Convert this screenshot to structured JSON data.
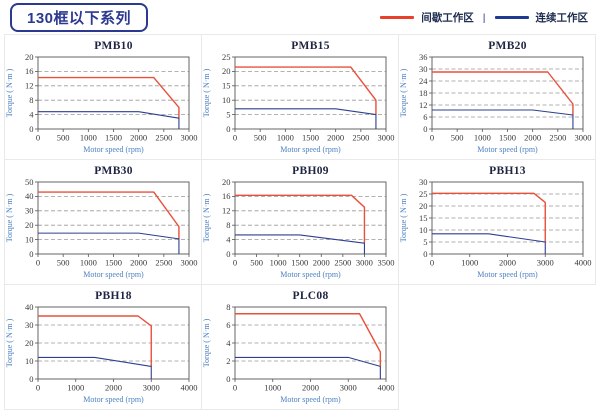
{
  "header": {
    "title": "130框以下系列",
    "legend": {
      "intermittent": "间歇工作区",
      "separator": "|",
      "continuous": "连续工作区"
    }
  },
  "theme": {
    "intermittent_color": "#e8503a",
    "continuous_color": "#2e3f8f",
    "grid_color": "#999999",
    "frame_color": "#555555",
    "tick_text_color": "#3a3a3a",
    "chart_title_color": "#1f2440",
    "axis_label_color": "#4a7fc1",
    "accent_navy": "#2b3990",
    "legend_red": "#e8402a",
    "legend_blue": "#1f3a93",
    "cell_border": "#e9e9e9"
  },
  "chart_data": [
    {
      "type": "line",
      "title": "PMB10",
      "xlabel": "Motor speed (rpm)",
      "ylabel": "Torque ( N·m )",
      "x_ticks": [
        0,
        500,
        1000,
        1500,
        2000,
        2500,
        3000
      ],
      "xlim": [
        0,
        3000
      ],
      "y_ticks": [
        0,
        4,
        8,
        12,
        16,
        20
      ],
      "ylim": [
        0,
        20
      ],
      "grid": "horizontal-dashed",
      "series": [
        {
          "name": "间歇工作区",
          "color": "intermittent",
          "points": [
            [
              0,
              14.3
            ],
            [
              2300,
              14.3
            ],
            [
              2800,
              6
            ],
            [
              2800,
              3
            ]
          ]
        },
        {
          "name": "连续工作区",
          "color": "continuous",
          "points": [
            [
              0,
              4.8
            ],
            [
              2000,
              4.8
            ],
            [
              2800,
              3
            ],
            [
              2800,
              0
            ]
          ]
        }
      ]
    },
    {
      "type": "line",
      "title": "PMB15",
      "xlabel": "Motor speed (rpm)",
      "ylabel": "Torque ( N·m )",
      "x_ticks": [
        0,
        500,
        1000,
        1500,
        2000,
        2500,
        3000
      ],
      "xlim": [
        0,
        3000
      ],
      "y_ticks": [
        0,
        5,
        10,
        15,
        20,
        25
      ],
      "ylim": [
        0,
        25
      ],
      "grid": "horizontal-dashed",
      "series": [
        {
          "name": "间歇工作区",
          "color": "intermittent",
          "points": [
            [
              0,
              21.5
            ],
            [
              2300,
              21.5
            ],
            [
              2800,
              10
            ],
            [
              2800,
              5
            ]
          ]
        },
        {
          "name": "连续工作区",
          "color": "continuous",
          "points": [
            [
              0,
              7
            ],
            [
              2000,
              7
            ],
            [
              2800,
              5
            ],
            [
              2800,
              0
            ]
          ]
        }
      ]
    },
    {
      "type": "line",
      "title": "PMB20",
      "xlabel": "Motor speed (rpm)",
      "ylabel": "Torque ( N·m )",
      "x_ticks": [
        0,
        500,
        1000,
        1500,
        2000,
        2500,
        3000
      ],
      "xlim": [
        0,
        3000
      ],
      "y_ticks": [
        0,
        6,
        12,
        18,
        24,
        30,
        36
      ],
      "ylim": [
        0,
        36
      ],
      "grid": "horizontal-dashed",
      "series": [
        {
          "name": "间歇工作区",
          "color": "intermittent",
          "points": [
            [
              0,
              28.5
            ],
            [
              2300,
              28.5
            ],
            [
              2800,
              12.5
            ],
            [
              2800,
              7
            ]
          ]
        },
        {
          "name": "连续工作区",
          "color": "continuous",
          "points": [
            [
              0,
              9.5
            ],
            [
              2000,
              9.5
            ],
            [
              2800,
              7
            ],
            [
              2800,
              0
            ]
          ]
        }
      ]
    },
    {
      "type": "line",
      "title": "PMB30",
      "xlabel": "Motor speed (rpm)",
      "ylabel": "Torque ( N·m )",
      "x_ticks": [
        0,
        500,
        1000,
        1500,
        2000,
        2500,
        3000
      ],
      "xlim": [
        0,
        3000
      ],
      "y_ticks": [
        0,
        10,
        20,
        30,
        40,
        50
      ],
      "ylim": [
        0,
        50
      ],
      "grid": "horizontal-dashed",
      "series": [
        {
          "name": "间歇工作区",
          "color": "intermittent",
          "points": [
            [
              0,
              43
            ],
            [
              2300,
              43
            ],
            [
              2800,
              19
            ],
            [
              2800,
              10.5
            ]
          ]
        },
        {
          "name": "连续工作区",
          "color": "continuous",
          "points": [
            [
              0,
              14.5
            ],
            [
              2000,
              14.5
            ],
            [
              2800,
              10.5
            ],
            [
              2800,
              0
            ]
          ]
        }
      ]
    },
    {
      "type": "line",
      "title": "PBH09",
      "xlabel": "Motor speed (rpm)",
      "ylabel": "Torque ( N·m )",
      "x_ticks": [
        0,
        500,
        1000,
        1500,
        2000,
        2500,
        3000,
        3500
      ],
      "xlim": [
        0,
        3500
      ],
      "y_ticks": [
        0,
        4,
        8,
        12,
        16,
        20
      ],
      "ylim": [
        0,
        20
      ],
      "grid": "horizontal-dashed",
      "series": [
        {
          "name": "间歇工作区",
          "color": "intermittent",
          "points": [
            [
              0,
              16.3
            ],
            [
              2700,
              16.3
            ],
            [
              3000,
              13
            ],
            [
              3000,
              3
            ]
          ]
        },
        {
          "name": "连续工作区",
          "color": "continuous",
          "points": [
            [
              0,
              5.3
            ],
            [
              1500,
              5.3
            ],
            [
              3000,
              3
            ],
            [
              3000,
              0
            ]
          ]
        }
      ]
    },
    {
      "type": "line",
      "title": "PBH13",
      "xlabel": "Motor speed (rpm)",
      "ylabel": "Torque ( N·m )",
      "x_ticks": [
        0,
        1000,
        2000,
        3000,
        4000
      ],
      "xlim": [
        0,
        4000
      ],
      "y_ticks": [
        0,
        5,
        10,
        15,
        20,
        25,
        30
      ],
      "ylim": [
        0,
        30
      ],
      "grid": "horizontal-dashed",
      "series": [
        {
          "name": "间歇工作区",
          "color": "intermittent",
          "points": [
            [
              0,
              25.3
            ],
            [
              2700,
              25.3
            ],
            [
              3000,
              21.5
            ],
            [
              3000,
              5
            ]
          ]
        },
        {
          "name": "连续工作区",
          "color": "continuous",
          "points": [
            [
              0,
              8.4
            ],
            [
              1500,
              8.4
            ],
            [
              3000,
              5
            ],
            [
              3000,
              0
            ]
          ]
        }
      ]
    },
    {
      "type": "line",
      "title": "PBH18",
      "xlabel": "Motor speed (rpm)",
      "ylabel": "Torque ( N·m )",
      "x_ticks": [
        0,
        1000,
        2000,
        3000,
        4000
      ],
      "xlim": [
        0,
        4000
      ],
      "y_ticks": [
        0,
        10,
        20,
        30,
        40
      ],
      "ylim": [
        0,
        40
      ],
      "grid": "horizontal-dashed",
      "series": [
        {
          "name": "间歇工作区",
          "color": "intermittent",
          "points": [
            [
              0,
              35
            ],
            [
              2650,
              35
            ],
            [
              3000,
              29.5
            ],
            [
              3000,
              7
            ]
          ]
        },
        {
          "name": "连续工作区",
          "color": "continuous",
          "points": [
            [
              0,
              12
            ],
            [
              1500,
              12
            ],
            [
              3000,
              7
            ],
            [
              3000,
              0
            ]
          ]
        }
      ]
    },
    {
      "type": "line",
      "title": "PLC08",
      "xlabel": "Motor speed (rpm)",
      "ylabel": "Torque ( N·m )",
      "x_ticks": [
        0,
        1000,
        2000,
        3000,
        4000
      ],
      "xlim": [
        0,
        4000
      ],
      "y_ticks": [
        0,
        2,
        4,
        6,
        8
      ],
      "ylim": [
        0,
        8
      ],
      "grid": "horizontal-dashed",
      "series": [
        {
          "name": "间歇工作区",
          "color": "intermittent",
          "points": [
            [
              0,
              7.25
            ],
            [
              3300,
              7.25
            ],
            [
              3850,
              3
            ],
            [
              3850,
              1.4
            ]
          ]
        },
        {
          "name": "连续工作区",
          "color": "continuous",
          "points": [
            [
              0,
              2.4
            ],
            [
              3000,
              2.4
            ],
            [
              3850,
              1.4
            ],
            [
              3850,
              0
            ]
          ]
        }
      ]
    }
  ]
}
